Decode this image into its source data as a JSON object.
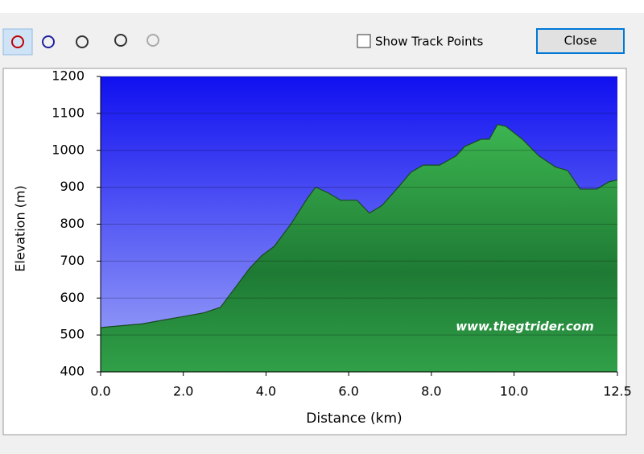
{
  "toolbar": {
    "checkbox_label": "Show Track Points",
    "close_button": "Close"
  },
  "chart_data": {
    "type": "area",
    "x_label": "Distance (km)",
    "y_label": "Elevation (m)",
    "annotation": "www.thegtrider.com",
    "color": "#2e9a45",
    "x": [
      0,
      0.5,
      1.0,
      1.5,
      2.0,
      2.5,
      2.9,
      3.2,
      3.6,
      3.9,
      4.2,
      4.6,
      5.0,
      5.2,
      5.5,
      5.8,
      6.2,
      6.5,
      6.8,
      7.2,
      7.5,
      7.8,
      8.2,
      8.6,
      8.8,
      9.2,
      9.4,
      9.6,
      9.8,
      10.2,
      10.6,
      11.0,
      11.3,
      11.6,
      12.0,
      12.3,
      12.5
    ],
    "values": [
      520,
      525,
      530,
      540,
      550,
      560,
      575,
      620,
      680,
      715,
      740,
      800,
      870,
      900,
      885,
      865,
      865,
      830,
      850,
      900,
      940,
      960,
      960,
      985,
      1010,
      1030,
      1030,
      1070,
      1065,
      1030,
      985,
      955,
      945,
      895,
      895,
      915,
      920
    ],
    "xlim": [
      0,
      12.5
    ],
    "ylim": [
      400,
      1200
    ],
    "xticks": [
      {
        "value": 0,
        "label": "0.0"
      },
      {
        "value": 2,
        "label": "2.0"
      },
      {
        "value": 4,
        "label": "4.0"
      },
      {
        "value": 6,
        "label": "6.0"
      },
      {
        "value": 8,
        "label": "8.0"
      },
      {
        "value": 10,
        "label": "10.0"
      },
      {
        "value": 12.5,
        "label": "12.5"
      }
    ],
    "yticks": [
      400,
      500,
      600,
      700,
      800,
      900,
      1000,
      1100,
      1200
    ],
    "grid": true
  }
}
